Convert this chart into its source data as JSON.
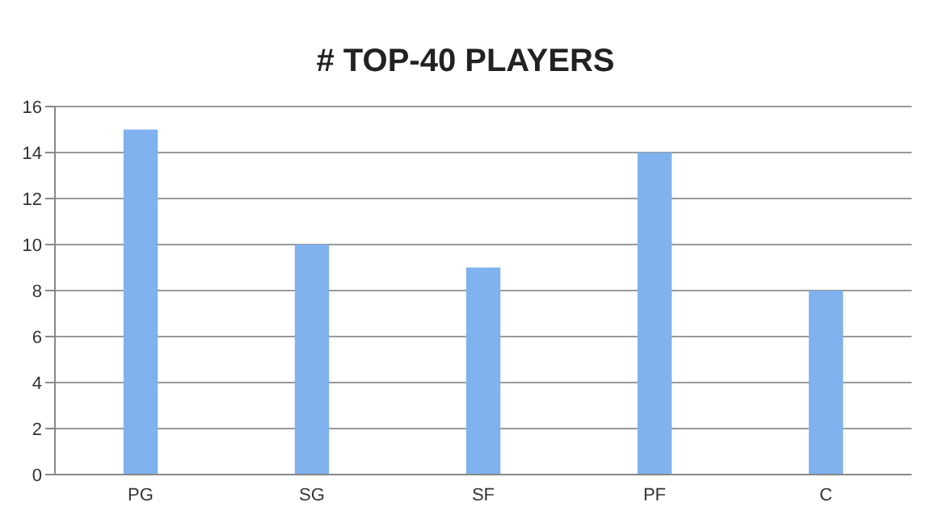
{
  "chart_data": {
    "type": "bar",
    "title": "# TOP-40 PLAYERS",
    "categories": [
      "PG",
      "SG",
      "SF",
      "PF",
      "C"
    ],
    "values": [
      15,
      10,
      9,
      14,
      8
    ],
    "color": "#7fb2ee",
    "ylim": [
      0,
      16
    ],
    "yticks": [
      0,
      2,
      4,
      6,
      8,
      10,
      12,
      14,
      16
    ],
    "grid": "y"
  }
}
